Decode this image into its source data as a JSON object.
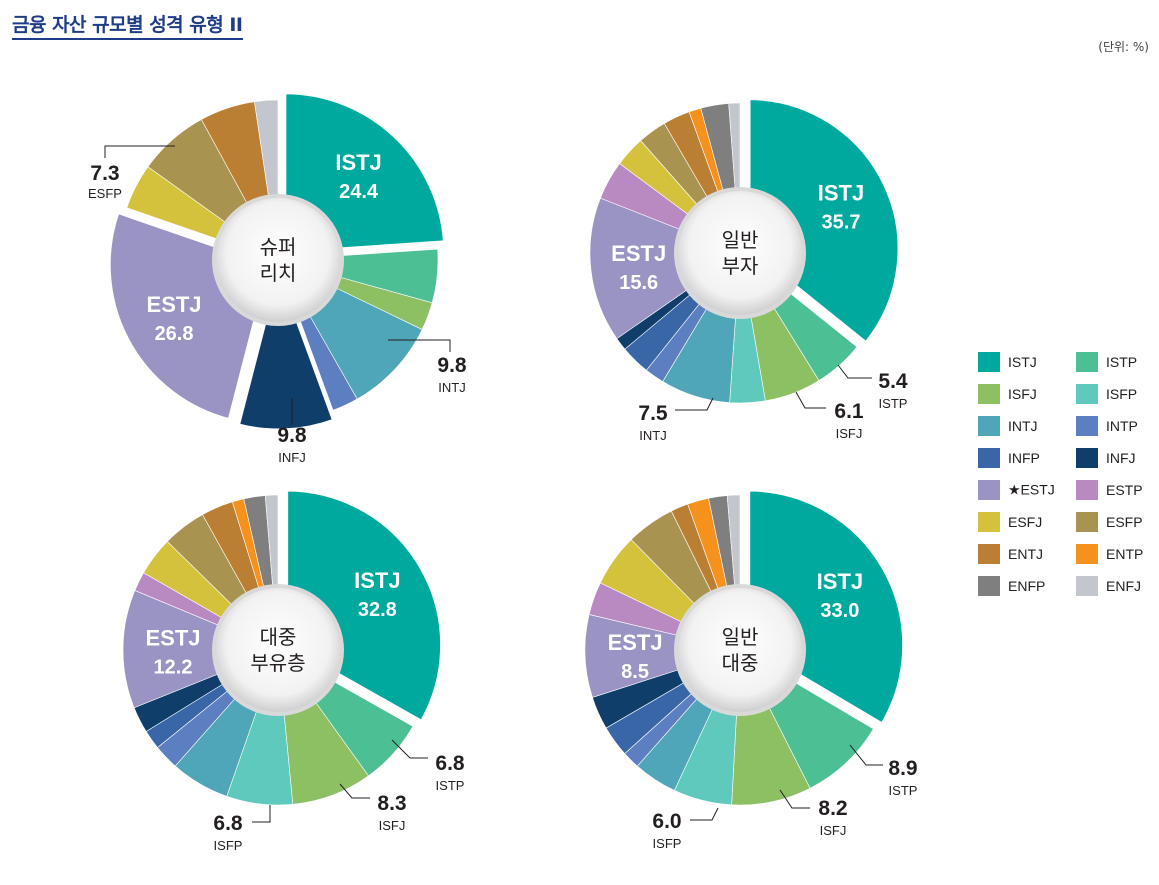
{
  "title": "금융 자산 규모별 성격 유형 II",
  "unit": "(단위: %)",
  "colors": {
    "ISTJ": "#00a99d",
    "ISTP": "#4dbf94",
    "ISFJ": "#8cc063",
    "ISFP": "#5fc9be",
    "INTJ": "#4fa6b8",
    "INTP": "#5b7fc1",
    "INFP": "#3866a7",
    "INFJ": "#0f3e6b",
    "ESTJ": "#9a94c4",
    "ESTP": "#b98ac1",
    "ESFJ": "#d5c23c",
    "ESFP": "#a99350",
    "ENTJ": "#bb7f34",
    "ENTP": "#f5921e",
    "ENFP": "#807f80",
    "ENFJ": "#c3c6cc"
  },
  "legend": [
    {
      "key": "ISTJ",
      "label": "ISTJ"
    },
    {
      "key": "ISTP",
      "label": "ISTP"
    },
    {
      "key": "ISFJ",
      "label": "ISFJ"
    },
    {
      "key": "ISFP",
      "label": "ISFP"
    },
    {
      "key": "INTJ",
      "label": "INTJ"
    },
    {
      "key": "INTP",
      "label": "INTP"
    },
    {
      "key": "INFP",
      "label": "INFP"
    },
    {
      "key": "INFJ",
      "label": "INFJ"
    },
    {
      "key": "ESTJ",
      "label": "★ESTJ"
    },
    {
      "key": "ESTP",
      "label": "ESTP"
    },
    {
      "key": "ESFJ",
      "label": "ESFJ"
    },
    {
      "key": "ESFP",
      "label": "ESFP"
    },
    {
      "key": "ENTJ",
      "label": "ENTJ"
    },
    {
      "key": "ENTP",
      "label": "ENTP"
    },
    {
      "key": "ENFP",
      "label": "ENFP"
    },
    {
      "key": "ENFJ",
      "label": "ENFJ"
    }
  ],
  "chart_data": [
    {
      "type": "pie",
      "title": "슈퍼 리치",
      "center_lines": [
        "슈퍼",
        "리치"
      ],
      "slices": [
        {
          "name": "ISTJ",
          "value": 24.4,
          "explode": true,
          "label_inside": true
        },
        {
          "name": "ISTP",
          "value": 5.5
        },
        {
          "name": "ISFJ",
          "value": 2.9
        },
        {
          "name": "INTJ",
          "value": 9.8,
          "callout": true
        },
        {
          "name": "INTP",
          "value": 2.7
        },
        {
          "name": "INFJ",
          "value": 9.8,
          "explode": true,
          "callout": true
        },
        {
          "name": "ESTJ",
          "value": 26.8,
          "explode": true,
          "label_inside": true
        },
        {
          "name": "ESFJ",
          "value": 4.7
        },
        {
          "name": "ESFP",
          "value": 7.3,
          "callout": true
        },
        {
          "name": "ENTJ",
          "value": 5.7
        },
        {
          "name": "ENFJ",
          "value": 2.4
        }
      ]
    },
    {
      "type": "pie",
      "title": "일반 부자",
      "center_lines": [
        "일반",
        "부자"
      ],
      "slices": [
        {
          "name": "ISTJ",
          "value": 35.7,
          "explode": true,
          "label_inside": true
        },
        {
          "name": "ISTP",
          "value": 5.4,
          "callout": true
        },
        {
          "name": "ISFJ",
          "value": 6.1,
          "callout": true
        },
        {
          "name": "ISFP",
          "value": 3.8
        },
        {
          "name": "INTJ",
          "value": 7.5,
          "callout": true
        },
        {
          "name": "INTP",
          "value": 2.1
        },
        {
          "name": "INFP",
          "value": 3.2
        },
        {
          "name": "INFJ",
          "value": 1.4
        },
        {
          "name": "ESTJ",
          "value": 15.6,
          "label_inside": true
        },
        {
          "name": "ESTP",
          "value": 4.2
        },
        {
          "name": "ESFJ",
          "value": 3.3
        },
        {
          "name": "ESFP",
          "value": 3.1
        },
        {
          "name": "ENTJ",
          "value": 2.9
        },
        {
          "name": "ENTP",
          "value": 1.3
        },
        {
          "name": "ENFP",
          "value": 3.0
        },
        {
          "name": "ENFJ",
          "value": 1.2
        }
      ]
    },
    {
      "type": "pie",
      "title": "대중 부유층",
      "center_lines": [
        "대중",
        "부유층"
      ],
      "slices": [
        {
          "name": "ISTJ",
          "value": 32.8,
          "explode": true,
          "label_inside": true
        },
        {
          "name": "ISTP",
          "value": 6.8,
          "callout": true
        },
        {
          "name": "ISFJ",
          "value": 8.3,
          "callout": true
        },
        {
          "name": "ISFP",
          "value": 6.8,
          "callout": true
        },
        {
          "name": "INTJ",
          "value": 6.1
        },
        {
          "name": "INTP",
          "value": 2.6
        },
        {
          "name": "INFP",
          "value": 2.0
        },
        {
          "name": "INFJ",
          "value": 2.7
        },
        {
          "name": "ESTJ",
          "value": 12.2,
          "label_inside": true
        },
        {
          "name": "ESTP",
          "value": 2.0
        },
        {
          "name": "ESFJ",
          "value": 4.0
        },
        {
          "name": "ESFP",
          "value": 4.5
        },
        {
          "name": "ENTJ",
          "value": 3.3
        },
        {
          "name": "ENTP",
          "value": 1.2
        },
        {
          "name": "ENFP",
          "value": 2.2
        },
        {
          "name": "ENFJ",
          "value": 1.3
        }
      ]
    },
    {
      "type": "pie",
      "title": "일반 대중",
      "center_lines": [
        "일반",
        "대중"
      ],
      "slices": [
        {
          "name": "ISTJ",
          "value": 33.0,
          "explode": true,
          "label_inside": true
        },
        {
          "name": "ISTP",
          "value": 8.9,
          "callout": true
        },
        {
          "name": "ISFJ",
          "value": 8.2,
          "callout": true
        },
        {
          "name": "ISFP",
          "value": 6.0,
          "callout": true
        },
        {
          "name": "INTJ",
          "value": 4.5
        },
        {
          "name": "INTP",
          "value": 1.8
        },
        {
          "name": "INFP",
          "value": 3.2
        },
        {
          "name": "INFJ",
          "value": 3.4
        },
        {
          "name": "ESTJ",
          "value": 8.5,
          "label_inside": true
        },
        {
          "name": "ESTP",
          "value": 3.4
        },
        {
          "name": "ESFJ",
          "value": 5.4
        },
        {
          "name": "ESFP",
          "value": 5.0
        },
        {
          "name": "ENTJ",
          "value": 1.8
        },
        {
          "name": "ENTP",
          "value": 2.2
        },
        {
          "name": "ENFP",
          "value": 1.9
        },
        {
          "name": "ENFJ",
          "value": 1.3
        }
      ]
    }
  ]
}
